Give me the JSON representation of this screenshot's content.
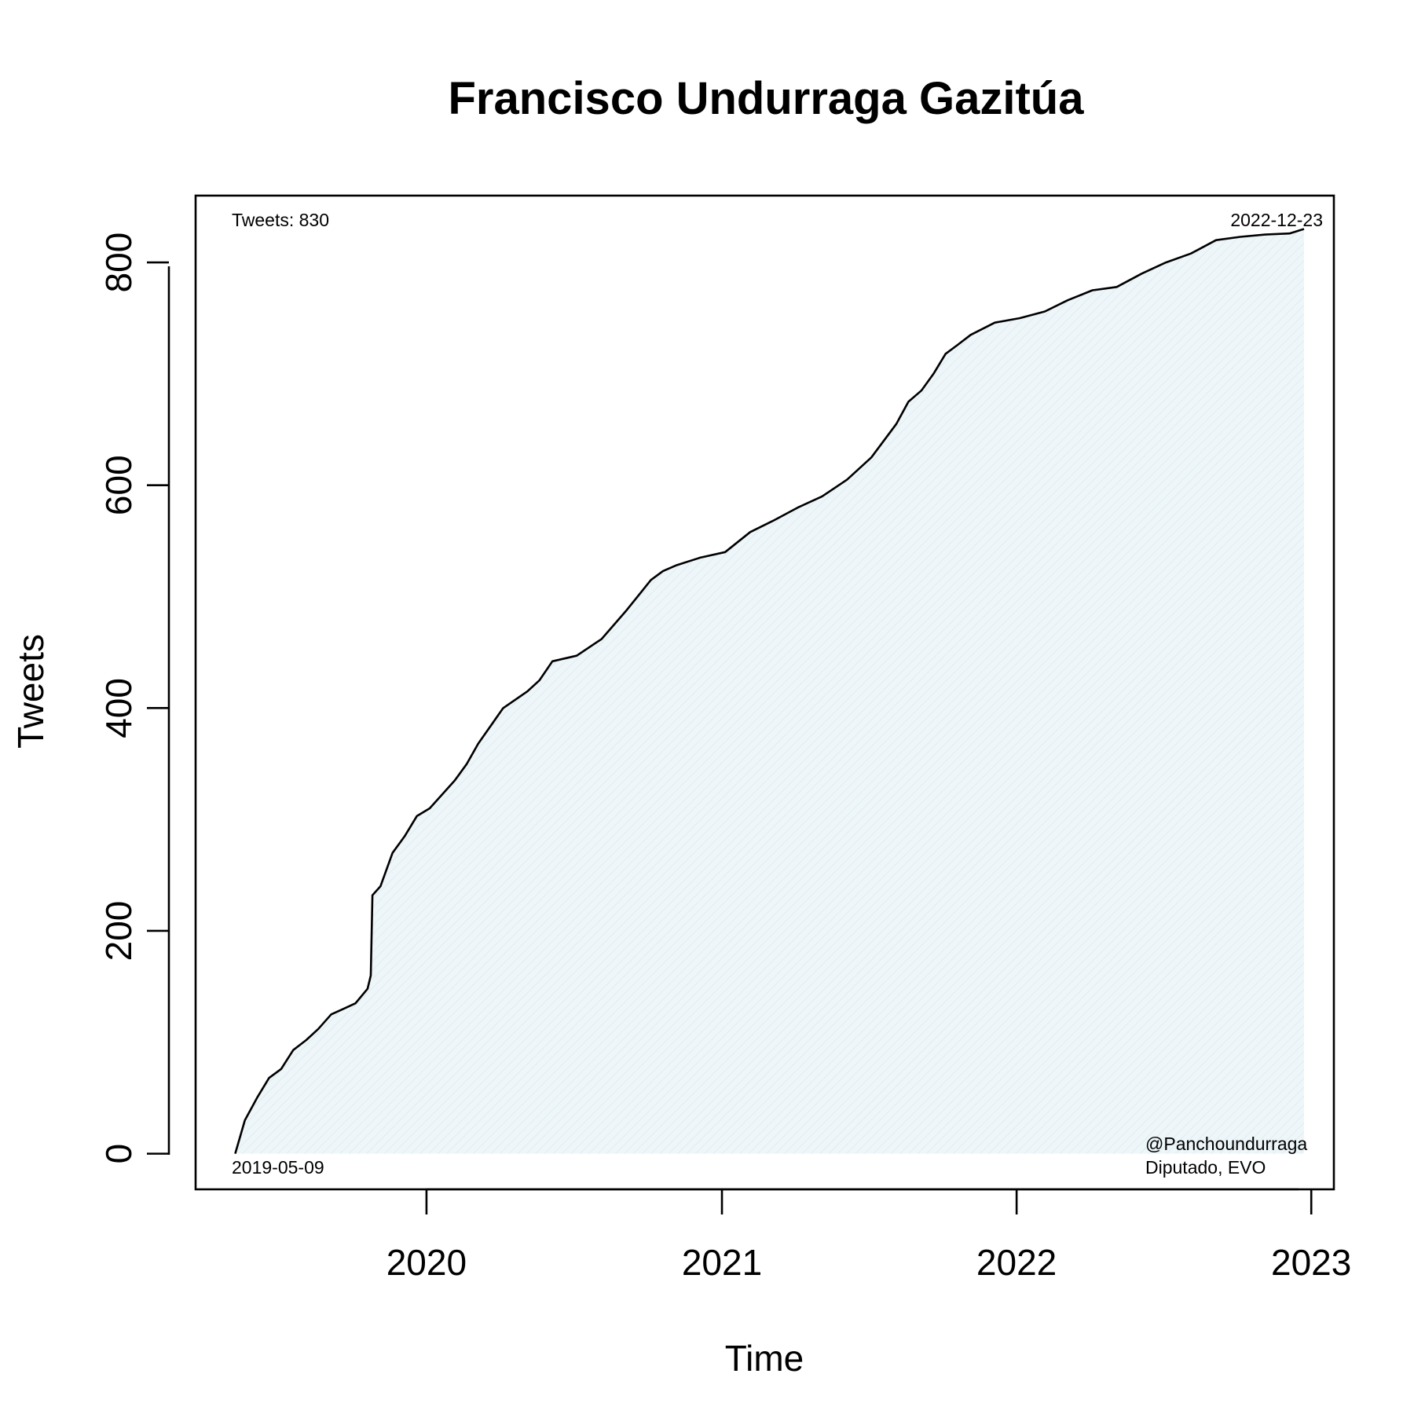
{
  "chart_data": {
    "type": "area",
    "title": "Francisco Undurraga Gazitúa",
    "xlabel": "Time",
    "ylabel": "Tweets",
    "xlim": [
      "2019-03-21",
      "2023-01-29"
    ],
    "ylim": [
      -32,
      860
    ],
    "x_ticks": [
      {
        "date": "2020-01-01",
        "label": "2020"
      },
      {
        "date": "2021-01-01",
        "label": "2021"
      },
      {
        "date": "2022-01-01",
        "label": "2022"
      },
      {
        "date": "2023-01-01",
        "label": "2023"
      }
    ],
    "y_ticks": [
      0,
      200,
      400,
      600,
      800
    ],
    "grid": false,
    "fill_color": "#eef6f9",
    "line_color": "#000000",
    "annotations": {
      "top_left": "Tweets: 830",
      "top_right": "2022-12-23",
      "bottom_left": "2019-05-09",
      "bottom_right_line1": "@Panchoundurraga",
      "bottom_right_line2": "Diputado, EVO"
    },
    "series": [
      {
        "x": [
          "2019-05-09",
          "2019-05-21",
          "2019-06-05",
          "2019-06-20",
          "2019-07-05",
          "2019-07-20",
          "2019-08-05",
          "2019-08-20",
          "2019-09-05",
          "2019-09-20",
          "2019-10-05",
          "2019-10-20",
          "2019-10-24",
          "2019-10-26",
          "2019-11-05",
          "2019-11-20",
          "2019-12-05",
          "2019-12-20",
          "2020-01-05",
          "2020-02-05",
          "2020-02-20",
          "2020-03-05",
          "2020-04-05",
          "2020-05-05",
          "2020-05-20",
          "2020-06-05",
          "2020-07-05",
          "2020-08-05",
          "2020-09-05",
          "2020-10-05",
          "2020-10-20",
          "2020-11-05",
          "2020-12-05",
          "2021-01-05",
          "2021-02-05",
          "2021-03-05",
          "2021-04-05",
          "2021-05-05",
          "2021-06-05",
          "2021-07-05",
          "2021-08-05",
          "2021-08-20",
          "2021-09-05",
          "2021-09-20",
          "2021-10-05",
          "2021-10-20",
          "2021-11-05",
          "2021-12-05",
          "2022-01-05",
          "2022-02-05",
          "2022-03-05",
          "2022-04-05",
          "2022-05-05",
          "2022-06-05",
          "2022-07-05",
          "2022-08-05",
          "2022-09-05",
          "2022-10-05",
          "2022-11-05",
          "2022-12-05",
          "2022-12-23"
        ],
        "y": [
          0,
          30,
          50,
          68,
          76,
          93,
          102,
          112,
          125,
          130,
          135,
          148,
          160,
          232,
          240,
          270,
          285,
          303,
          310,
          335,
          350,
          368,
          400,
          415,
          425,
          442,
          447,
          462,
          488,
          515,
          523,
          528,
          535,
          540,
          558,
          568,
          580,
          590,
          605,
          625,
          655,
          675,
          685,
          700,
          718,
          726,
          735,
          746,
          750,
          756,
          766,
          775,
          778,
          790,
          800,
          808,
          820,
          823,
          825,
          826,
          830
        ]
      }
    ]
  }
}
